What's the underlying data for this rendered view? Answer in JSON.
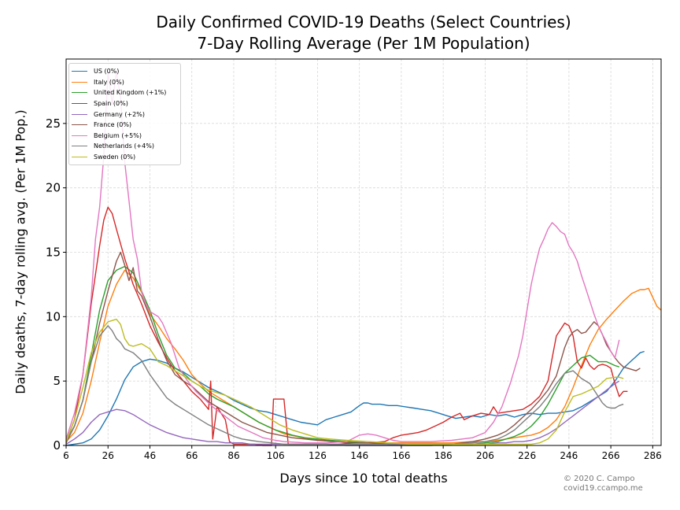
{
  "title_line1": "Daily Confirmed COVID-19 Deaths (Select Countries)",
  "title_line2": "7-Day Rolling Average (Per 1M Population)",
  "credit_line1": "© 2020 C. Campo",
  "credit_line2": "covid19.ccampo.me",
  "chart_data": {
    "type": "line",
    "title": "Daily Confirmed COVID-19 Deaths (Select Countries)\n7-Day Rolling Average (Per 1M Population)",
    "xlabel": "Days since 10 total deaths",
    "ylabel": "Daily deaths, 7-day rolling avg. (Per 1M Pop.)",
    "xlim": [
      6,
      290
    ],
    "ylim": [
      0,
      30
    ],
    "xticks": [
      6,
      26,
      46,
      66,
      86,
      106,
      126,
      146,
      166,
      186,
      206,
      226,
      246,
      266,
      286
    ],
    "yticks": [
      0,
      5,
      10,
      15,
      20,
      25
    ],
    "grid": true,
    "legend_position": "top-left",
    "series": [
      {
        "name": "US (0%)",
        "color": "#1f77b4",
        "x": [
          6,
          14,
          18,
          22,
          26,
          30,
          34,
          38,
          42,
          46,
          50,
          54,
          58,
          62,
          66,
          70,
          74,
          78,
          82,
          86,
          90,
          94,
          98,
          102,
          106,
          110,
          114,
          118,
          122,
          126,
          130,
          134,
          138,
          142,
          146,
          148,
          150,
          152,
          156,
          160,
          164,
          168,
          172,
          176,
          180,
          184,
          188,
          192,
          196,
          200,
          204,
          208,
          212,
          216,
          220,
          224,
          228,
          232,
          236,
          240,
          244,
          248,
          252,
          256,
          260,
          264,
          266,
          268,
          270,
          272,
          274,
          276,
          278,
          280,
          282
        ],
        "y": [
          0.0,
          0.2,
          0.5,
          1.2,
          2.3,
          3.6,
          5.1,
          6.1,
          6.5,
          6.7,
          6.6,
          6.4,
          6.0,
          5.7,
          5.3,
          4.9,
          4.5,
          4.2,
          3.9,
          3.5,
          3.2,
          2.9,
          2.7,
          2.6,
          2.4,
          2.2,
          2.0,
          1.8,
          1.7,
          1.6,
          2.0,
          2.2,
          2.4,
          2.6,
          3.1,
          3.3,
          3.3,
          3.2,
          3.2,
          3.1,
          3.1,
          3.0,
          2.9,
          2.8,
          2.7,
          2.5,
          2.3,
          2.1,
          2.2,
          2.3,
          2.2,
          2.4,
          2.3,
          2.4,
          2.2,
          2.4,
          2.5,
          2.4,
          2.5,
          2.5,
          2.6,
          2.7,
          3.0,
          3.4,
          3.8,
          4.2,
          4.6,
          5.0,
          5.5,
          6.0,
          6.3,
          6.6,
          6.9,
          7.2,
          7.3
        ]
      },
      {
        "name": "Italy (0%)",
        "color": "#ff7f0e",
        "x": [
          6,
          10,
          14,
          18,
          22,
          26,
          30,
          34,
          38,
          42,
          46,
          50,
          54,
          58,
          62,
          66,
          70,
          74,
          78,
          82,
          86,
          90,
          94,
          98,
          102,
          106,
          110,
          116,
          122,
          128,
          134,
          140,
          150,
          160,
          170,
          180,
          190,
          200,
          206,
          212,
          216,
          220,
          224,
          228,
          232,
          236,
          240,
          244,
          248,
          252,
          256,
          260,
          264,
          268,
          272,
          276,
          280,
          282,
          284,
          286,
          288,
          290
        ],
        "y": [
          0.3,
          1.0,
          2.5,
          5.0,
          8.0,
          10.8,
          12.5,
          13.6,
          13.0,
          11.9,
          10.2,
          9.3,
          8.3,
          7.5,
          6.6,
          5.5,
          4.8,
          4.2,
          3.8,
          3.4,
          3.0,
          2.6,
          2.2,
          1.8,
          1.5,
          1.2,
          0.9,
          0.7,
          0.5,
          0.4,
          0.3,
          0.2,
          0.2,
          0.2,
          0.2,
          0.2,
          0.2,
          0.3,
          0.3,
          0.4,
          0.5,
          0.6,
          0.7,
          0.8,
          1.0,
          1.4,
          2.0,
          3.0,
          4.5,
          6.2,
          7.8,
          9.0,
          9.8,
          10.5,
          11.2,
          11.8,
          12.1,
          12.1,
          12.2,
          11.5,
          10.8,
          10.5
        ]
      },
      {
        "name": "United Kingdom (+1%)",
        "color": "#2ca02c",
        "x": [
          6,
          10,
          14,
          18,
          22,
          26,
          30,
          34,
          38,
          42,
          46,
          50,
          54,
          58,
          62,
          66,
          70,
          74,
          78,
          82,
          86,
          90,
          94,
          98,
          102,
          106,
          110,
          114,
          120,
          126,
          132,
          140,
          150,
          160,
          170,
          180,
          190,
          200,
          206,
          212,
          216,
          220,
          224,
          228,
          232,
          236,
          240,
          244,
          248,
          252,
          256,
          260,
          264,
          268,
          270
        ],
        "y": [
          0.4,
          1.5,
          3.5,
          7.0,
          10.5,
          12.8,
          13.6,
          13.9,
          13.4,
          12.0,
          10.5,
          8.6,
          7.0,
          6.0,
          5.6,
          5.0,
          4.6,
          4.0,
          3.6,
          3.3,
          3.0,
          2.6,
          2.2,
          1.8,
          1.5,
          1.2,
          1.0,
          0.8,
          0.6,
          0.5,
          0.4,
          0.3,
          0.2,
          0.1,
          0.1,
          0.1,
          0.1,
          0.1,
          0.2,
          0.3,
          0.5,
          0.7,
          1.0,
          1.5,
          2.2,
          3.2,
          4.4,
          5.6,
          6.2,
          6.8,
          7.0,
          6.5,
          6.5,
          6.2,
          6.1
        ]
      },
      {
        "name": "Spain (0%)",
        "color": "#d62728",
        "x": [
          6,
          10,
          14,
          18,
          22,
          24,
          26,
          28,
          30,
          34,
          38,
          42,
          46,
          50,
          54,
          58,
          62,
          66,
          70,
          72,
          74,
          75,
          76,
          78,
          80,
          82,
          84,
          86,
          90,
          96,
          100,
          104,
          105,
          110,
          112,
          120,
          128,
          136,
          144,
          150,
          158,
          162,
          166,
          170,
          174,
          178,
          182,
          186,
          190,
          194,
          196,
          200,
          204,
          208,
          210,
          212,
          216,
          220,
          224,
          228,
          232,
          236,
          238,
          240,
          242,
          244,
          246,
          248,
          250,
          252,
          254,
          256,
          258,
          260,
          262,
          264,
          266,
          268,
          270,
          272,
          274
        ],
        "y": [
          0.3,
          2.0,
          5.5,
          11.0,
          15.5,
          17.5,
          18.5,
          18.0,
          16.8,
          14.5,
          12.5,
          11.0,
          9.3,
          8.0,
          6.8,
          5.8,
          5.0,
          4.2,
          3.6,
          3.2,
          2.8,
          5.0,
          0.5,
          3.0,
          2.5,
          2.0,
          0.3,
          0.1,
          0.1,
          0.1,
          0.0,
          0.0,
          3.6,
          3.6,
          0.1,
          0.1,
          0.1,
          0.1,
          0.2,
          0.2,
          0.3,
          0.6,
          0.8,
          0.9,
          1.0,
          1.2,
          1.5,
          1.8,
          2.2,
          2.5,
          2.0,
          2.3,
          2.5,
          2.4,
          3.0,
          2.5,
          2.6,
          2.7,
          2.8,
          3.2,
          3.8,
          5.0,
          6.8,
          8.5,
          9.0,
          9.5,
          9.3,
          8.5,
          6.5,
          6.0,
          6.8,
          6.2,
          5.9,
          6.2,
          6.3,
          6.2,
          6.0,
          4.8,
          3.8,
          4.2,
          4.2
        ]
      },
      {
        "name": "Germany (+2%)",
        "color": "#9467bd",
        "x": [
          6,
          10,
          14,
          18,
          22,
          26,
          30,
          34,
          38,
          42,
          46,
          50,
          54,
          58,
          62,
          66,
          70,
          74,
          78,
          82,
          86,
          90,
          94,
          98,
          102,
          106,
          110,
          120,
          130,
          140,
          150,
          160,
          170,
          180,
          190,
          200,
          206,
          212,
          216,
          220,
          224,
          228,
          232,
          236,
          240,
          244,
          248,
          252,
          256,
          260,
          264,
          268,
          270
        ],
        "y": [
          0.1,
          0.5,
          1.0,
          1.8,
          2.4,
          2.6,
          2.8,
          2.7,
          2.4,
          2.0,
          1.6,
          1.3,
          1.0,
          0.8,
          0.6,
          0.5,
          0.4,
          0.3,
          0.3,
          0.2,
          0.2,
          0.2,
          0.1,
          0.1,
          0.1,
          0.1,
          0.1,
          0.1,
          0.1,
          0.0,
          0.0,
          0.0,
          0.0,
          0.0,
          0.1,
          0.1,
          0.1,
          0.2,
          0.2,
          0.3,
          0.3,
          0.4,
          0.6,
          0.9,
          1.3,
          1.8,
          2.3,
          2.8,
          3.3,
          3.8,
          4.3,
          4.8,
          5.0
        ]
      },
      {
        "name": "France (0%)",
        "color": "#8c564b",
        "x": [
          6,
          10,
          14,
          18,
          22,
          26,
          30,
          32,
          34,
          36,
          38,
          40,
          42,
          46,
          50,
          54,
          58,
          62,
          66,
          70,
          74,
          78,
          82,
          86,
          90,
          96,
          102,
          108,
          114,
          120,
          126,
          134,
          142,
          150,
          160,
          170,
          180,
          190,
          200,
          206,
          212,
          216,
          220,
          224,
          228,
          232,
          236,
          240,
          242,
          244,
          246,
          248,
          250,
          252,
          254,
          256,
          258,
          260,
          262,
          264,
          266,
          268,
          270,
          272,
          274,
          276,
          278,
          280
        ],
        "y": [
          0.2,
          1.5,
          3.5,
          6.5,
          9.5,
          12.0,
          14.3,
          15.0,
          14.0,
          12.8,
          13.8,
          12.0,
          11.6,
          10.0,
          8.2,
          6.6,
          5.5,
          5.0,
          4.6,
          4.0,
          3.4,
          3.0,
          2.6,
          2.2,
          1.8,
          1.4,
          1.0,
          0.8,
          0.6,
          0.5,
          0.4,
          0.3,
          0.2,
          0.2,
          0.1,
          0.1,
          0.1,
          0.1,
          0.3,
          0.5,
          0.8,
          1.1,
          1.6,
          2.2,
          2.8,
          3.5,
          4.3,
          5.4,
          6.5,
          7.6,
          8.4,
          8.8,
          9.0,
          8.7,
          8.8,
          9.2,
          9.6,
          9.3,
          8.6,
          7.8,
          7.3,
          6.8,
          6.4,
          6.1,
          6.0,
          5.9,
          5.8,
          6.0
        ]
      },
      {
        "name": "Belgium (+5%)",
        "color": "#e377c2",
        "x": [
          6,
          10,
          14,
          18,
          20,
          22,
          24,
          26,
          28,
          30,
          32,
          34,
          36,
          38,
          40,
          42,
          44,
          46,
          48,
          50,
          52,
          56,
          60,
          64,
          68,
          72,
          76,
          80,
          84,
          88,
          92,
          96,
          100,
          106,
          110,
          120,
          130,
          140,
          146,
          150,
          154,
          158,
          162,
          166,
          170,
          180,
          190,
          200,
          206,
          210,
          214,
          218,
          222,
          224,
          226,
          228,
          230,
          232,
          234,
          236,
          238,
          240,
          242,
          244,
          246,
          248,
          250,
          252,
          254,
          256,
          258,
          260,
          262,
          264,
          266,
          268,
          270
        ],
        "y": [
          0.5,
          2.5,
          5.5,
          11.5,
          16.0,
          18.5,
          22.5,
          29.0,
          26.5,
          29.0,
          27.0,
          22.0,
          19.0,
          16.0,
          14.5,
          12.0,
          11.0,
          10.4,
          10.2,
          10.0,
          9.5,
          8.0,
          6.0,
          5.0,
          4.2,
          3.6,
          3.0,
          2.5,
          2.0,
          1.5,
          1.2,
          0.9,
          0.6,
          0.4,
          0.3,
          0.2,
          0.2,
          0.3,
          0.8,
          0.9,
          0.8,
          0.6,
          0.4,
          0.3,
          0.3,
          0.3,
          0.4,
          0.6,
          1.0,
          1.8,
          3.0,
          4.8,
          7.0,
          8.5,
          10.5,
          12.5,
          14.0,
          15.3,
          16.0,
          16.8,
          17.3,
          17.0,
          16.6,
          16.4,
          15.5,
          15.0,
          14.3,
          13.2,
          12.2,
          11.2,
          10.2,
          9.3,
          8.6,
          8.0,
          7.3,
          6.8,
          8.2
        ]
      },
      {
        "name": "Netherlands (+4%)",
        "color": "#7f7f7f",
        "x": [
          6,
          10,
          14,
          18,
          22,
          26,
          28,
          30,
          32,
          34,
          38,
          42,
          46,
          50,
          54,
          58,
          62,
          66,
          70,
          74,
          78,
          82,
          86,
          90,
          94,
          98,
          104,
          110,
          120,
          130,
          140,
          150,
          160,
          170,
          180,
          190,
          200,
          206,
          212,
          216,
          220,
          224,
          228,
          232,
          236,
          240,
          244,
          248,
          252,
          256,
          260,
          262,
          264,
          266,
          268,
          270,
          272
        ],
        "y": [
          0.3,
          1.5,
          3.5,
          6.5,
          8.5,
          9.3,
          8.9,
          8.3,
          8.0,
          7.5,
          7.2,
          6.6,
          5.5,
          4.6,
          3.7,
          3.2,
          2.8,
          2.4,
          2.0,
          1.6,
          1.3,
          1.0,
          0.7,
          0.5,
          0.4,
          0.3,
          0.2,
          0.1,
          0.1,
          0.1,
          0.1,
          0.1,
          0.1,
          0.1,
          0.1,
          0.1,
          0.2,
          0.3,
          0.5,
          0.8,
          1.2,
          1.8,
          2.4,
          3.0,
          3.8,
          4.8,
          5.6,
          5.8,
          5.2,
          4.8,
          3.8,
          3.3,
          3.0,
          2.9,
          2.9,
          3.1,
          3.2
        ]
      },
      {
        "name": "Sweden (0%)",
        "color": "#bcbd22",
        "x": [
          6,
          10,
          14,
          18,
          22,
          26,
          30,
          32,
          34,
          36,
          38,
          42,
          46,
          50,
          54,
          58,
          62,
          66,
          70,
          74,
          78,
          82,
          86,
          90,
          94,
          98,
          102,
          108,
          114,
          120,
          126,
          132,
          140,
          150,
          160,
          170,
          180,
          190,
          200,
          206,
          212,
          216,
          220,
          224,
          228,
          232,
          236,
          240,
          244,
          248,
          252,
          256,
          260,
          264,
          268,
          270,
          272
        ],
        "y": [
          0.3,
          2.0,
          4.5,
          7.2,
          8.8,
          9.6,
          9.8,
          9.4,
          8.3,
          7.8,
          7.7,
          7.9,
          7.5,
          6.5,
          6.2,
          5.8,
          5.4,
          5.0,
          4.6,
          4.3,
          4.1,
          3.9,
          3.6,
          3.3,
          3.0,
          2.6,
          2.2,
          1.6,
          1.2,
          0.9,
          0.6,
          0.5,
          0.4,
          0.3,
          0.2,
          0.1,
          0.1,
          0.1,
          0.1,
          0.1,
          0.1,
          0.1,
          0.1,
          0.1,
          0.1,
          0.2,
          0.5,
          1.2,
          2.6,
          3.8,
          4.0,
          4.3,
          4.6,
          5.2,
          5.3,
          5.3,
          5.2
        ]
      }
    ]
  }
}
